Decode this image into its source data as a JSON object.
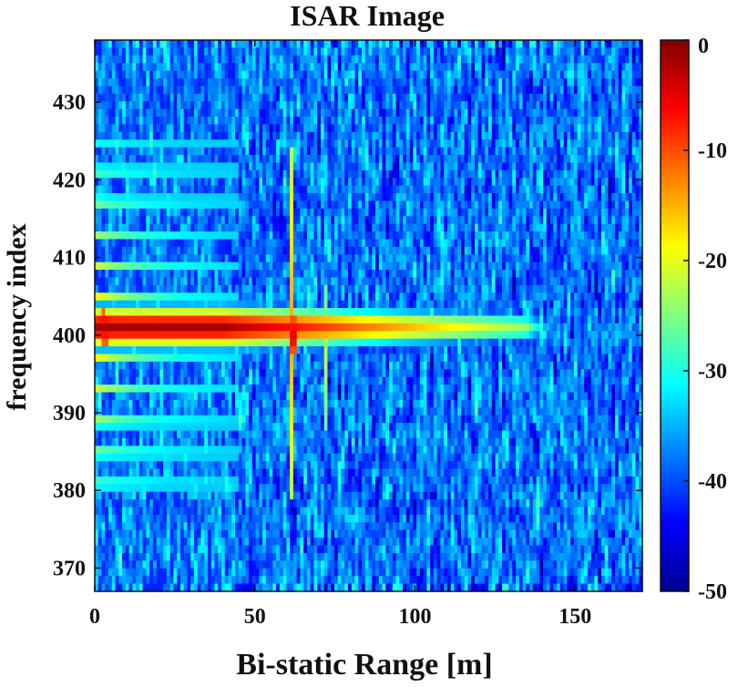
{
  "chart_data": {
    "type": "heatmap",
    "title": "ISAR Image",
    "xlabel": "Bi-static Range [m]",
    "ylabel": "frequency index",
    "xlim": [
      0,
      171
    ],
    "ylim": [
      367,
      438
    ],
    "xticks": [
      0,
      50,
      100,
      150
    ],
    "yticks": [
      370,
      380,
      390,
      400,
      410,
      420,
      430
    ],
    "colorbar": {
      "range": [
        -50,
        0
      ],
      "ticks": [
        0,
        -10,
        -20,
        -30,
        -40,
        -50
      ],
      "colormap": "jet"
    },
    "grid": false,
    "grid_size": {
      "cols": 160,
      "rows": 72
    },
    "features": [
      {
        "desc": "strong horizontal band",
        "y_center": 401,
        "y_halfwidth": 2.5,
        "x_start": 0,
        "x_end": 135,
        "peak_db": -2
      },
      {
        "desc": "horizontal stripes",
        "x_start": 0,
        "x_end": 45,
        "y_min": 380,
        "y_max": 425,
        "peak_db": -18
      },
      {
        "desc": "vertical line",
        "x": 61.5,
        "y_min": 379,
        "y_max": 424,
        "peak_db": -14
      },
      {
        "desc": "vertical line",
        "x": 72,
        "y_min": 388,
        "y_max": 406,
        "peak_db": -22
      },
      {
        "desc": "hot spot",
        "x": 62,
        "y": 400,
        "peak_db": -1
      },
      {
        "desc": "hot spot",
        "x": 3,
        "y": 401,
        "peak_db": -3
      }
    ]
  }
}
